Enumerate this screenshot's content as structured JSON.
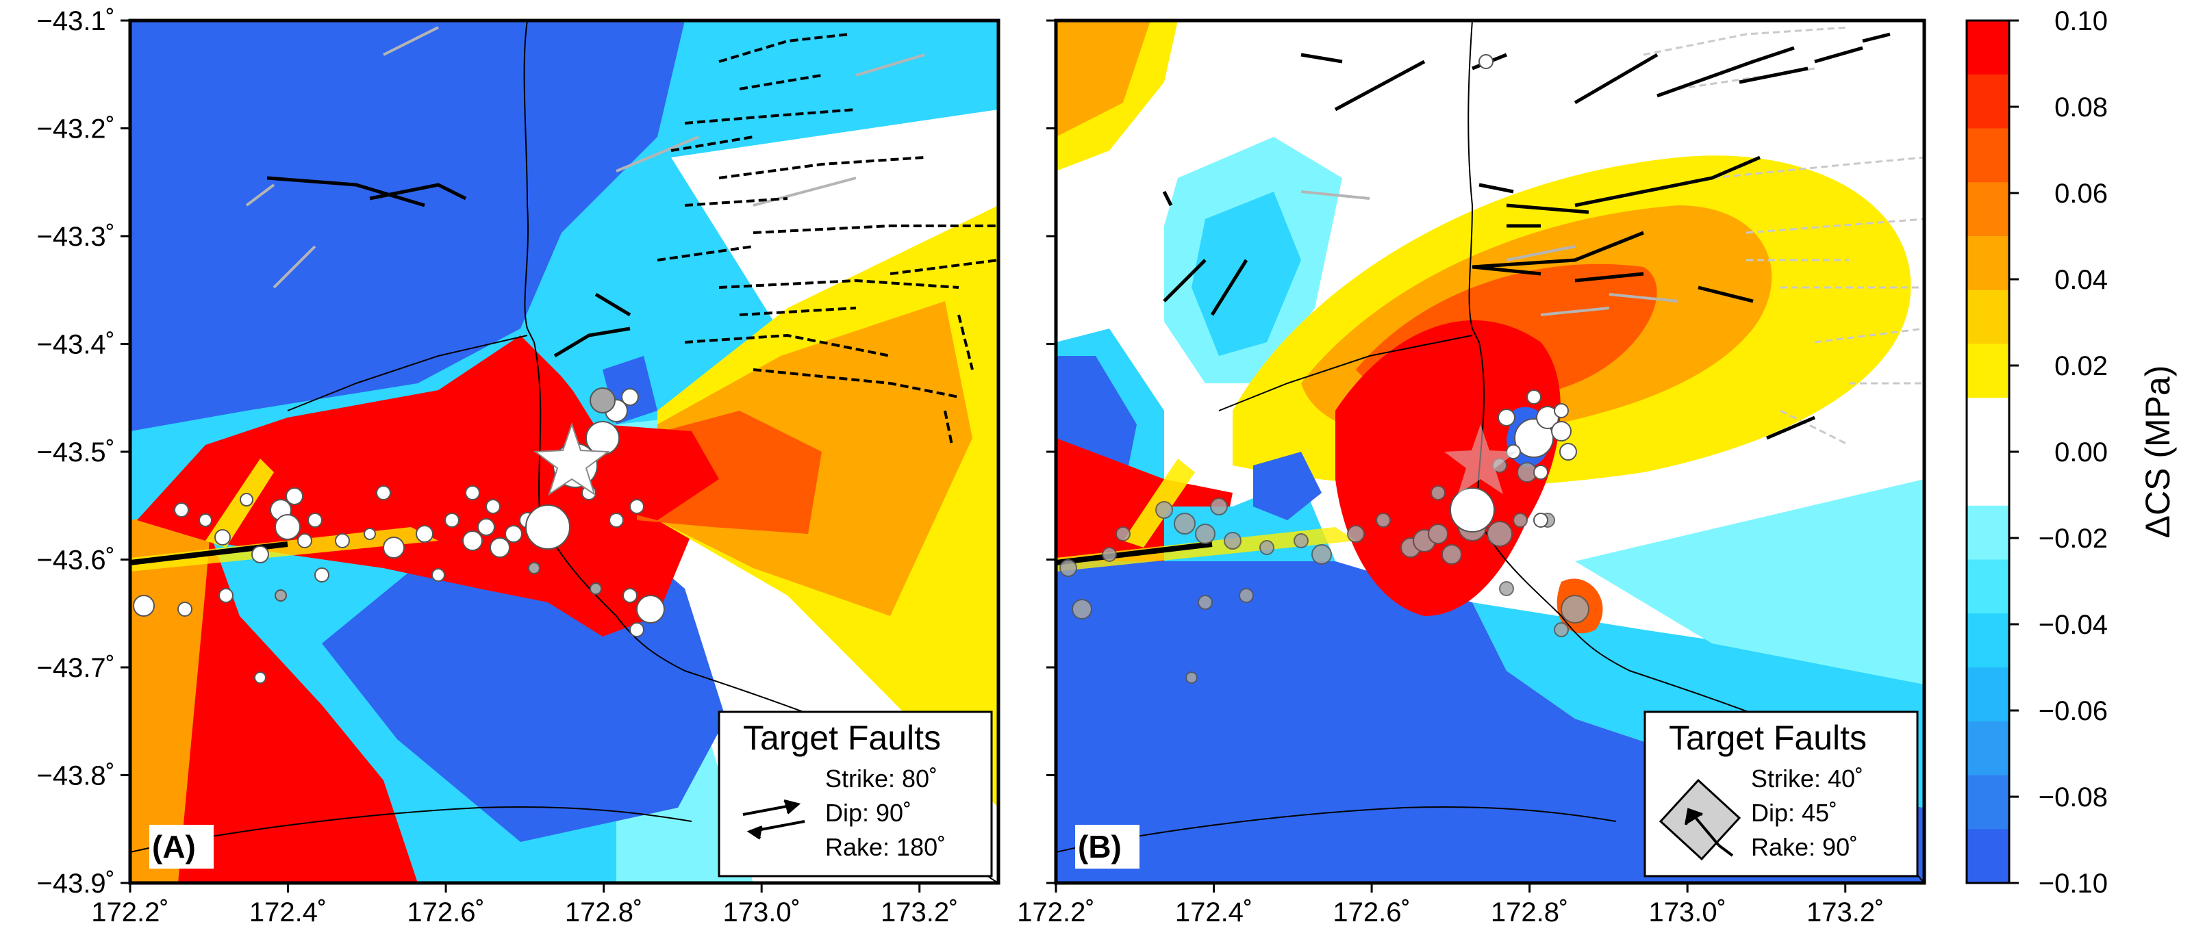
{
  "panels": [
    {
      "label": "(A)",
      "legend": {
        "title": "Target Faults",
        "strike": "Strike: 80˚",
        "dip": "Dip: 90˚",
        "rake": "Rake: 180˚",
        "symbol": "strike-slip-arrows-icon"
      }
    },
    {
      "label": "(B)",
      "legend": {
        "title": "Target Faults",
        "strike": "Strike: 40˚",
        "dip": "Dip: 45˚",
        "rake": "Rake: 90˚",
        "symbol": "thrust-box-icon"
      }
    }
  ],
  "axes": {
    "x_ticks": [
      "172.2˚",
      "172.4˚",
      "172.6˚",
      "172.8˚",
      "173.0˚",
      "173.2˚"
    ],
    "y_ticks": [
      "−43.1˚",
      "−43.2˚",
      "−43.3˚",
      "−43.4˚",
      "−43.5˚",
      "−43.6˚",
      "−43.7˚",
      "−43.8˚",
      "−43.9˚"
    ]
  },
  "colorbar": {
    "title": "ΔCS (MPa)",
    "labels": [
      "0.10",
      "0.08",
      "0.06",
      "0.04",
      "0.02",
      "0.00",
      "−0.02",
      "−0.04",
      "−0.06",
      "−0.08",
      "−0.10"
    ],
    "colors": [
      "#ff0000",
      "#ff2e00",
      "#ff5a00",
      "#ff8200",
      "#ffa800",
      "#ffd000",
      "#ffee00",
      "#ffffff",
      "#ffffff",
      "#7ff6ff",
      "#4ce8ff",
      "#29d2ff",
      "#24b8fb",
      "#2c9cf4",
      "#307ff0",
      "#2f62ef"
    ]
  },
  "colors": {
    "red": "#ff0000",
    "orange": "#ff9d00",
    "yellow": "#ffee00",
    "light_blue": "#7ff6ff",
    "cyan": "#2fd6ff",
    "blue": "#2f66ef",
    "star": "#ffffff"
  }
}
